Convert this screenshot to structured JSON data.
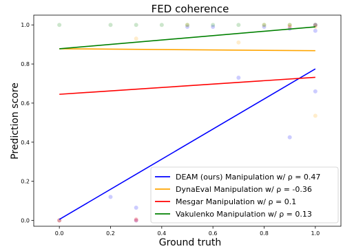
{
  "chart_data": {
    "type": "scatter",
    "title": "FED coherence",
    "xlabel": "Ground truth",
    "ylabel": "Prediction score",
    "xlim": [
      -0.1,
      1.1
    ],
    "ylim": [
      -0.03,
      1.05
    ],
    "xticks": [
      "0.0",
      "0.2",
      "0.4",
      "0.6",
      "0.8",
      "1.0"
    ],
    "xtick_values": [
      0.0,
      0.2,
      0.4,
      0.6,
      0.8,
      1.0
    ],
    "yticks": [
      "0.0",
      "0.2",
      "0.4",
      "0.6",
      "0.8",
      "1.0"
    ],
    "ytick_values": [
      0.0,
      0.2,
      0.4,
      0.6,
      0.8,
      1.0
    ],
    "grid": false,
    "legend_position": "lower-right",
    "series": [
      {
        "name": "DEAM (ours) Manipulation w/ ρ = 0.47",
        "color": "#0000ff",
        "fit": {
          "x": [
            0.0,
            1.0
          ],
          "y": [
            0.005,
            0.775
          ]
        },
        "points": [
          [
            0.0,
            0.0
          ],
          [
            0.2,
            0.12
          ],
          [
            0.3,
            0.065
          ],
          [
            0.3,
            0.0
          ],
          [
            0.5,
            0.99
          ],
          [
            0.6,
            0.99
          ],
          [
            0.7,
            0.73
          ],
          [
            0.8,
            0.99
          ],
          [
            0.9,
            0.425
          ],
          [
            0.9,
            0.98
          ],
          [
            1.0,
            0.66
          ],
          [
            1.0,
            0.97
          ],
          [
            1.0,
            1.0
          ]
        ]
      },
      {
        "name": "DynaEval Manipulation w/ ρ = -0.36",
        "color": "#ffa500",
        "fit": {
          "x": [
            0.0,
            1.0
          ],
          "y": [
            0.878,
            0.868
          ]
        },
        "points": [
          [
            0.0,
            0.0
          ],
          [
            0.3,
            0.93
          ],
          [
            0.5,
            1.0
          ],
          [
            0.7,
            0.91
          ],
          [
            0.8,
            1.0
          ],
          [
            0.9,
            1.0
          ],
          [
            1.0,
            0.535
          ],
          [
            1.0,
            0.99
          ]
        ]
      },
      {
        "name": "Mesgar Manipulation w/ ρ = 0.1",
        "color": "#ff0000",
        "fit": {
          "x": [
            0.0,
            1.0
          ],
          "y": [
            0.645,
            0.732
          ]
        },
        "points": [
          [
            0.0,
            0.0
          ],
          [
            0.3,
            0.0
          ],
          [
            0.3,
            0.005
          ],
          [
            0.9,
            0.99
          ],
          [
            1.0,
            1.0
          ]
        ]
      },
      {
        "name": "Vakulenko Manipulation w/ ρ = 0.13",
        "color": "#008000",
        "fit": {
          "x": [
            0.0,
            1.0
          ],
          "y": [
            0.878,
            0.99
          ]
        },
        "points": [
          [
            0.0,
            1.0
          ],
          [
            0.2,
            1.0
          ],
          [
            0.3,
            1.0
          ],
          [
            0.4,
            1.0
          ],
          [
            0.5,
            1.0
          ],
          [
            0.6,
            1.0
          ],
          [
            0.7,
            1.0
          ],
          [
            0.8,
            1.0
          ],
          [
            0.9,
            1.0
          ],
          [
            1.0,
            1.0
          ]
        ]
      }
    ]
  }
}
